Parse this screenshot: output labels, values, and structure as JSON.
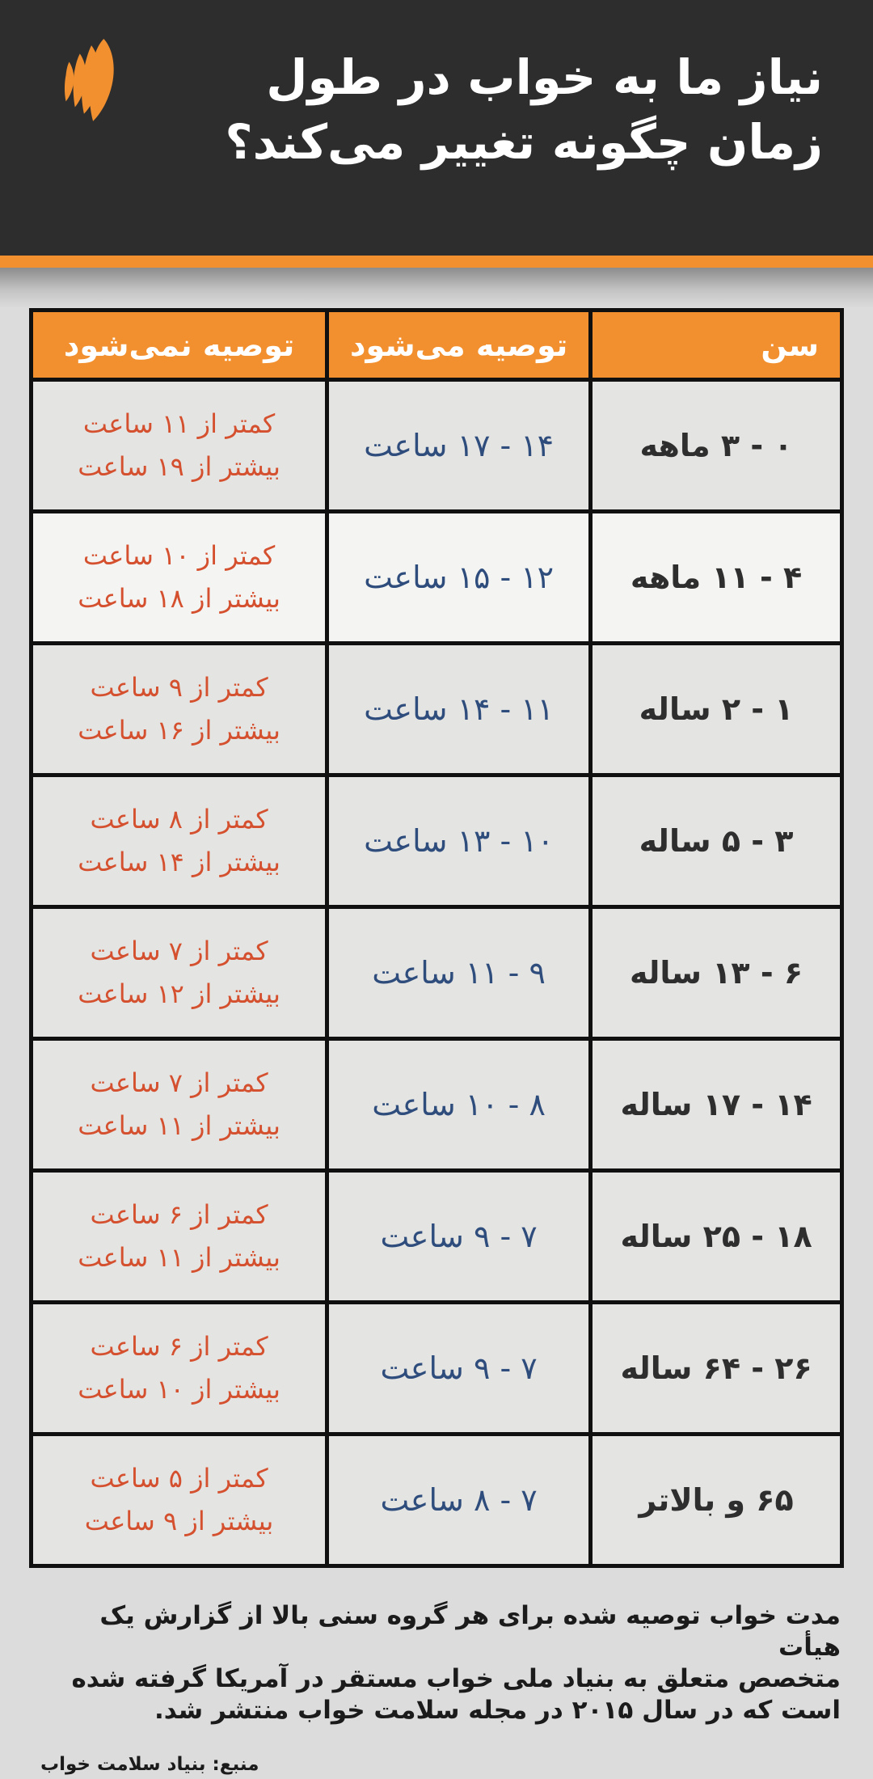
{
  "header": {
    "logo_icon": "sbs-mercator-logo",
    "title_line1": "نیاز ما به خواب در طول",
    "title_line2": "زمان چگونه تغییر می‌کند؟"
  },
  "chart_data": {
    "type": "table",
    "title": "نیاز ما به خواب در طول زمان چگونه تغییر می‌کند؟",
    "columns": [
      "سن",
      "توصیه می‌شود",
      "توصیه نمی‌شود"
    ],
    "rows": [
      [
        "۰ - ۳ ماهه",
        "۱۴ - ۱۷ ساعت",
        "کمتر از ۱۱ ساعت",
        "بیشتر از ۱۹ ساعت"
      ],
      [
        "۴ - ۱۱ ماهه",
        "۱۲ - ۱۵ ساعت",
        "کمتر از ۱۰ ساعت",
        "بیشتر از ۱۸ ساعت"
      ],
      [
        "۱ - ۲ ساله",
        "۱۱ - ۱۴ ساعت",
        "کمتر از ۹ ساعت",
        "بیشتر از ۱۶ ساعت"
      ],
      [
        "۳ - ۵ ساله",
        "۱۰ - ۱۳ ساعت",
        "کمتر از ۸ ساعت",
        "بیشتر از ۱۴ ساعت"
      ],
      [
        "۶ - ۱۳ ساله",
        "۹ - ۱۱ ساعت",
        "کمتر از ۷ ساعت",
        "بیشتر از ۱۲ ساعت"
      ],
      [
        "۱۴ - ۱۷ ساله",
        "۸ - ۱۰ ساعت",
        "کمتر از ۷ ساعت",
        "بیشتر از ۱۱ ساعت"
      ],
      [
        "۱۸ - ۲۵ ساله",
        "۷ - ۹ ساعت",
        "کمتر از ۶ ساعت",
        "بیشتر از ۱۱ ساعت"
      ],
      [
        "۲۶ - ۶۴ ساله",
        "۷ - ۹ ساعت",
        "کمتر از ۶ ساعت",
        "بیشتر از ۱۰ ساعت"
      ],
      [
        "۶۵ و بالاتر",
        "۷ - ۸ ساعت",
        "کمتر از ۵ ساعت",
        "بیشتر از ۹ ساعت"
      ]
    ],
    "highlight_row_index": 1,
    "legend_position": "none",
    "grid": true
  },
  "footer": {
    "note_line1": "مدت خواب توصیه شده برای هر گروه سنی بالا از گزارش یک هیأت",
    "note_line2": "متخصص متعلق به بنیاد ملی خواب مستقر در آمریکا گرفته شده",
    "note_line3": "است که در سال ۲۰۱۵ در مجله سلامت خواب منتشر شد.",
    "source": "منبع: بنیاد سلامت خواب"
  },
  "colors": {
    "orange": "#F2902F",
    "header_bg": "#2D2D2D",
    "recommended_text": "#2E4C7C",
    "not_recommended_text": "#D4502E",
    "row_bg": "#E4E4E2",
    "highlight_row_bg": "#F4F4F2",
    "page_bg": "#DCDCDC"
  }
}
